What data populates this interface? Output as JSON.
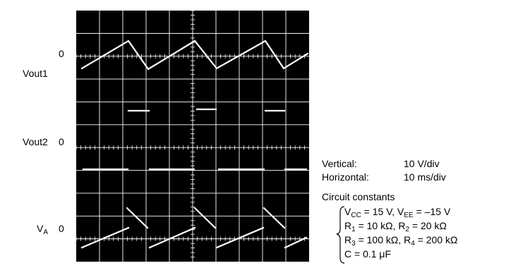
{
  "channels": [
    {
      "name": "Vout1",
      "zero": "0"
    },
    {
      "name": "Vout2",
      "zero": "0"
    },
    {
      "name_base": "V",
      "name_sub": "A",
      "zero": "0"
    }
  ],
  "settings": {
    "vertical_label": "Vertical:",
    "vertical_value": "10 V/div",
    "horizontal_label": "Horizontal:",
    "horizontal_value": "10 ms/div"
  },
  "constants": {
    "title": "Circuit constants",
    "line1": {
      "a": "V",
      "a_sub": "CC",
      "b": " = 15 V, V",
      "b_sub": "EE",
      "c": " = –15 V"
    },
    "line2": {
      "a": "R",
      "a_sub": "1",
      "b": " = 10 kΩ,  R",
      "b_sub": "2",
      "c": " = 20 kΩ"
    },
    "line3": {
      "a": "R",
      "a_sub": "3",
      "b": " = 100 kΩ, R",
      "b_sub": "4",
      "c": " = 200 kΩ"
    },
    "line4": {
      "a": "C = 0.1 μF"
    }
  },
  "colors": {
    "screen": "#000000",
    "grid": "#ffffff",
    "trace": "#ffffff"
  }
}
